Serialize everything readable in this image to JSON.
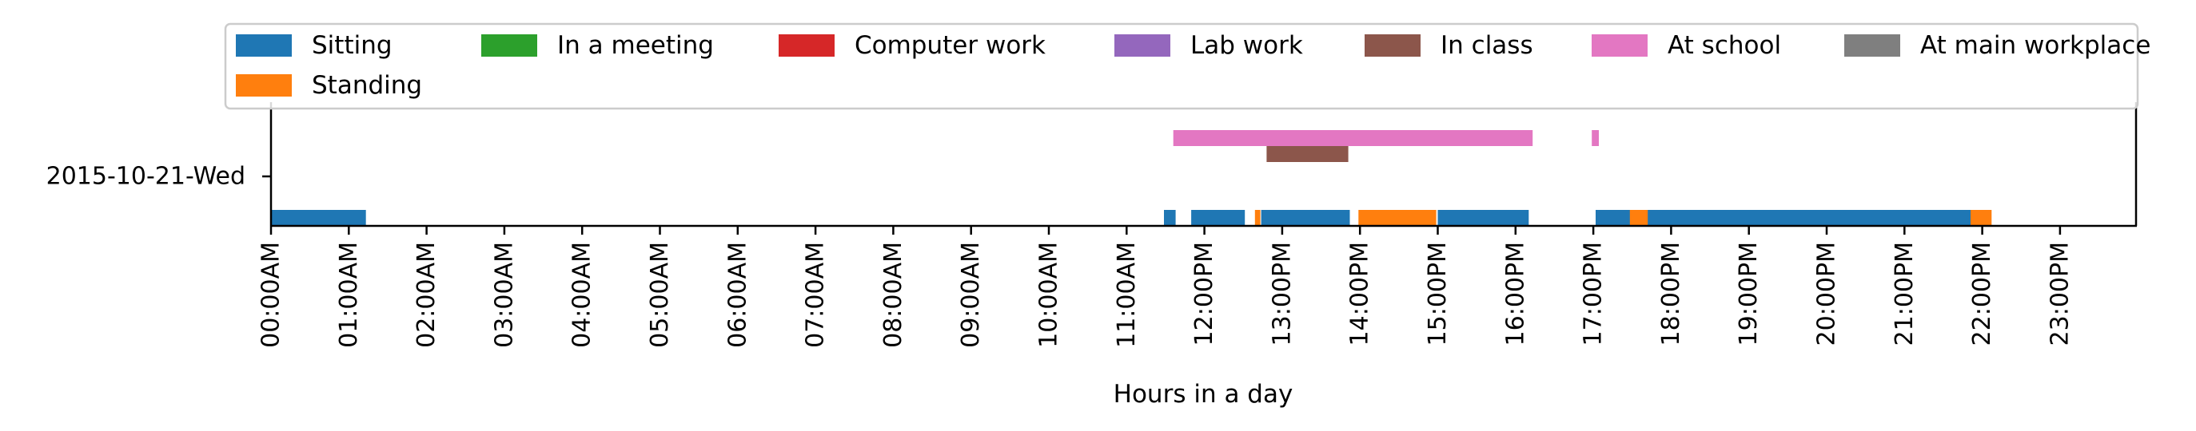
{
  "chart_data": {
    "type": "timeline",
    "xlabel": "Hours in a day",
    "ylabel": "",
    "xlim": [
      0,
      24
    ],
    "x_ticks": [
      0,
      1,
      2,
      3,
      4,
      5,
      6,
      7,
      8,
      9,
      10,
      11,
      12,
      13,
      14,
      15,
      16,
      17,
      18,
      19,
      20,
      21,
      22,
      23
    ],
    "x_tick_labels": [
      "00:00AM",
      "01:00AM",
      "02:00AM",
      "03:00AM",
      "04:00AM",
      "05:00AM",
      "06:00AM",
      "07:00AM",
      "08:00AM",
      "09:00AM",
      "10:00AM",
      "11:00AM",
      "12:00PM",
      "13:00PM",
      "14:00PM",
      "15:00PM",
      "16:00PM",
      "17:00PM",
      "18:00PM",
      "19:00PM",
      "20:00PM",
      "21:00PM",
      "22:00PM",
      "23:00PM"
    ],
    "y_categories": [
      "2015-10-21-Wed"
    ],
    "legend_placement": "top",
    "grid": false,
    "series": [
      {
        "name": "Sitting",
        "color": "#1f77b4",
        "lane": 0,
        "intervals": [
          [
            0.0,
            1.22
          ],
          [
            11.48,
            11.63
          ],
          [
            11.83,
            12.52
          ],
          [
            12.73,
            13.87
          ],
          [
            15.0,
            16.17
          ],
          [
            17.03,
            17.48
          ],
          [
            17.68,
            21.85
          ]
        ]
      },
      {
        "name": "In a meeting",
        "color": "#2ca02c",
        "lane": 1,
        "intervals": []
      },
      {
        "name": "Computer work",
        "color": "#d62728",
        "lane": 2,
        "intervals": []
      },
      {
        "name": "Lab work",
        "color": "#9467bd",
        "lane": 3,
        "intervals": []
      },
      {
        "name": "In class",
        "color": "#8c564b",
        "lane": 4,
        "intervals": [
          [
            12.8,
            13.85
          ]
        ]
      },
      {
        "name": "At school",
        "color": "#e377c2",
        "lane": 5,
        "intervals": [
          [
            11.6,
            16.22
          ],
          [
            16.98,
            17.07
          ]
        ]
      },
      {
        "name": "At main workplace",
        "color": "#7f7f7f",
        "lane": 6,
        "intervals": []
      },
      {
        "name": "Standing",
        "color": "#ff7f0e",
        "lane": 0,
        "intervals": [
          [
            12.65,
            12.72
          ],
          [
            13.98,
            14.98
          ],
          [
            17.47,
            17.7
          ],
          [
            21.85,
            22.12
          ]
        ]
      }
    ]
  }
}
